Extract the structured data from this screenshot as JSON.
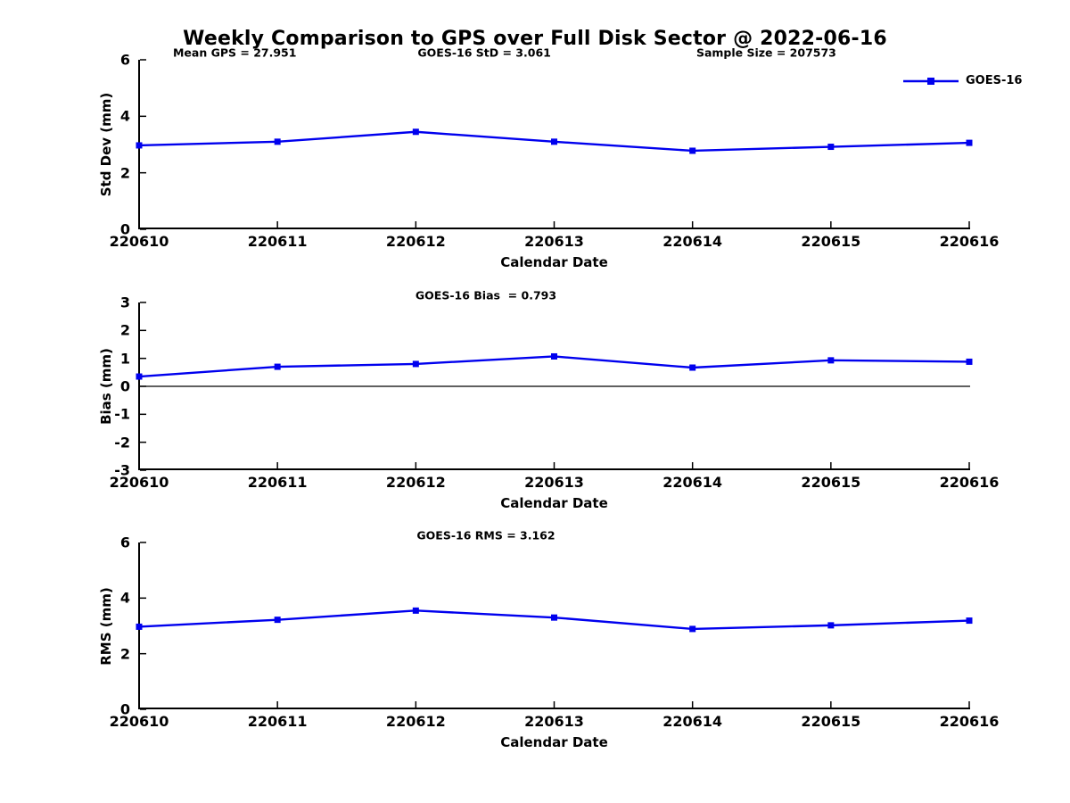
{
  "figure": {
    "title": "Weekly Comparison to GPS over Full Disk Sector @ 2022-06-16",
    "annotations": {
      "mean_gps": "Mean GPS = 27.951",
      "std": "GOES-16 StD = 3.061",
      "sample_size": "Sample Size = 207573"
    },
    "legend": {
      "label": "GOES-16"
    },
    "colors": {
      "line": "#0000EE",
      "axis": "#000000",
      "text": "#000000",
      "background": "#FFFFFF"
    }
  },
  "chart_data": [
    {
      "type": "line",
      "title": "",
      "ylabel": "Std Dev (mm)",
      "xlabel": "Calendar Date",
      "categories": [
        "220610",
        "220611",
        "220612",
        "220613",
        "220614",
        "220615",
        "220616"
      ],
      "series": [
        {
          "name": "GOES-16",
          "values": [
            2.97,
            3.1,
            3.45,
            3.1,
            2.78,
            2.92,
            3.06
          ]
        }
      ],
      "ylim": [
        0,
        6
      ],
      "yticks": [
        0,
        2,
        4,
        6
      ],
      "zero_line": false,
      "grid": false,
      "legend_position": "top-right",
      "marker": "square"
    },
    {
      "type": "line",
      "annotation": "GOES-16 Bias  = 0.793",
      "ylabel": "Bias (mm)",
      "xlabel": "Calendar Date",
      "categories": [
        "220610",
        "220611",
        "220612",
        "220613",
        "220614",
        "220615",
        "220616"
      ],
      "series": [
        {
          "name": "GOES-16",
          "values": [
            0.35,
            0.7,
            0.8,
            1.07,
            0.67,
            0.93,
            0.88
          ]
        }
      ],
      "ylim": [
        -3,
        3
      ],
      "yticks": [
        -3,
        -2,
        -1,
        0,
        1,
        2,
        3
      ],
      "zero_line": true,
      "grid": false,
      "marker": "square"
    },
    {
      "type": "line",
      "annotation": "GOES-16 RMS = 3.162",
      "ylabel": "RMS (mm)",
      "xlabel": "Calendar Date",
      "categories": [
        "220610",
        "220611",
        "220612",
        "220613",
        "220614",
        "220615",
        "220616"
      ],
      "series": [
        {
          "name": "GOES-16",
          "values": [
            2.97,
            3.22,
            3.55,
            3.3,
            2.89,
            3.02,
            3.19
          ]
        }
      ],
      "ylim": [
        0,
        6
      ],
      "yticks": [
        0,
        2,
        4,
        6
      ],
      "zero_line": false,
      "grid": false,
      "marker": "square"
    }
  ]
}
